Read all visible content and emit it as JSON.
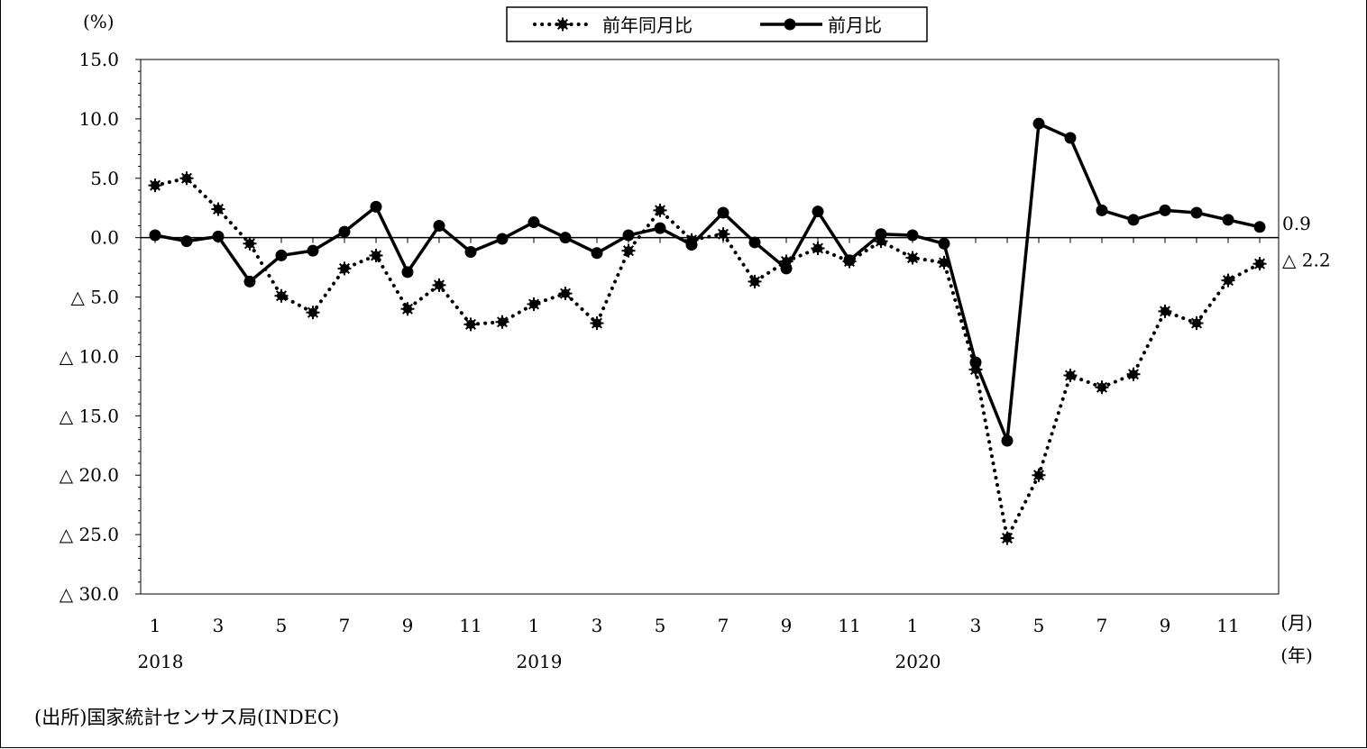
{
  "chart_data": {
    "type": "line",
    "unit_label": "(%)",
    "x_unit_month": "(月)",
    "x_unit_year": "(年)",
    "ylim": [
      -30,
      15
    ],
    "yticks": [
      15,
      10,
      5,
      0,
      -5,
      -10,
      -15,
      -20,
      -25,
      -30
    ],
    "ytick_labels": [
      "15.0",
      "10.0",
      "5.0",
      "0.0",
      "△ 5.0",
      "△ 10.0",
      "△ 15.0",
      "△ 20.0",
      "△ 25.0",
      "△ 30.0"
    ],
    "months": [
      "1",
      "2",
      "3",
      "4",
      "5",
      "6",
      "7",
      "8",
      "9",
      "10",
      "11",
      "12",
      "1",
      "2",
      "3",
      "4",
      "5",
      "6",
      "7",
      "8",
      "9",
      "10",
      "11",
      "12",
      "1",
      "2",
      "3",
      "4",
      "5",
      "6",
      "7",
      "8",
      "9",
      "10",
      "11",
      "12"
    ],
    "month_labels": [
      "1",
      "",
      "3",
      "",
      "5",
      "",
      "7",
      "",
      "9",
      "",
      "11",
      "",
      "1",
      "",
      "3",
      "",
      "5",
      "",
      "7",
      "",
      "9",
      "",
      "11",
      "",
      "1",
      "",
      "3",
      "",
      "5",
      "",
      "7",
      "",
      "9",
      "",
      "11",
      ""
    ],
    "years": [
      {
        "label": "2018",
        "index": 0
      },
      {
        "label": "2019",
        "index": 12
      },
      {
        "label": "2020",
        "index": 24
      }
    ],
    "legend": {
      "position": "top-center"
    },
    "series": [
      {
        "name": "前年同月比",
        "style": "dotted",
        "color": "#000000",
        "values": [
          4.4,
          5.0,
          2.4,
          -0.5,
          -4.9,
          -6.3,
          -2.6,
          -1.5,
          -6.0,
          -4.0,
          -7.3,
          -7.1,
          -5.6,
          -4.7,
          -7.2,
          -1.1,
          2.3,
          -0.2,
          0.3,
          -3.7,
          -2.0,
          -0.9,
          -2.0,
          -0.3,
          -1.7,
          -2.1,
          -11.1,
          -25.3,
          -20.0,
          -11.6,
          -12.6,
          -11.5,
          -6.2,
          -7.2,
          -3.6,
          -2.2
        ]
      },
      {
        "name": "前月比",
        "style": "solid",
        "color": "#000000",
        "values": [
          0.2,
          -0.3,
          0.1,
          -3.7,
          -1.5,
          -1.1,
          0.5,
          2.6,
          -2.9,
          1.0,
          -1.2,
          -0.1,
          1.3,
          0.0,
          -1.3,
          0.2,
          0.8,
          -0.6,
          2.1,
          -0.4,
          -2.6,
          2.2,
          -1.9,
          0.3,
          0.2,
          -0.5,
          -10.5,
          -17.1,
          9.6,
          8.4,
          2.3,
          1.5,
          2.3,
          2.1,
          1.5,
          0.9
        ]
      }
    ],
    "end_labels": [
      {
        "series": 1,
        "text": "0.9"
      },
      {
        "series": 0,
        "text": "△ 2.2"
      }
    ]
  },
  "source": "(出所)国家統計センサス局(INDEC)"
}
